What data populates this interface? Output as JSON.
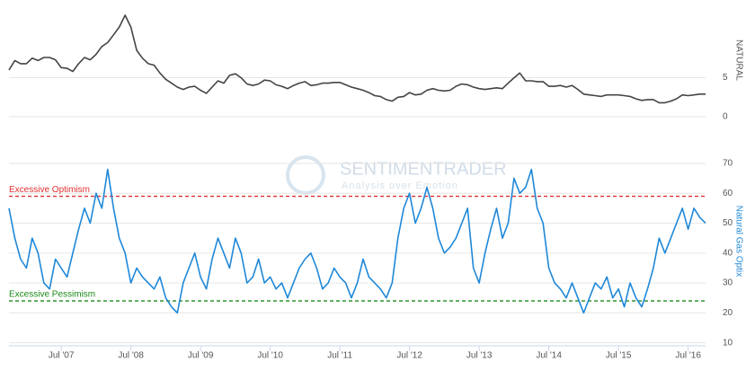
{
  "chart_data": [
    {
      "type": "line",
      "axis_title": "NATURAL",
      "x": [
        "2006-10",
        "2006-11",
        "2006-12",
        "2007-01",
        "2007-02",
        "2007-03",
        "2007-04",
        "2007-05",
        "2007-06",
        "2007-07",
        "2007-08",
        "2007-09",
        "2007-10",
        "2007-11",
        "2007-12",
        "2008-01",
        "2008-02",
        "2008-03",
        "2008-04",
        "2008-05",
        "2008-06",
        "2008-07",
        "2008-08",
        "2008-09",
        "2008-10",
        "2008-11",
        "2008-12",
        "2009-01",
        "2009-02",
        "2009-03",
        "2009-04",
        "2009-05",
        "2009-06",
        "2009-07",
        "2009-08",
        "2009-09",
        "2009-10",
        "2009-11",
        "2009-12",
        "2010-01",
        "2010-02",
        "2010-03",
        "2010-04",
        "2010-05",
        "2010-06",
        "2010-07",
        "2010-08",
        "2010-09",
        "2010-10",
        "2010-11",
        "2010-12",
        "2011-01",
        "2011-02",
        "2011-03",
        "2011-04",
        "2011-05",
        "2011-06",
        "2011-07",
        "2011-08",
        "2011-09",
        "2011-10",
        "2011-11",
        "2011-12",
        "2012-01",
        "2012-02",
        "2012-03",
        "2012-04",
        "2012-05",
        "2012-06",
        "2012-07",
        "2012-08",
        "2012-09",
        "2012-10",
        "2012-11",
        "2012-12",
        "2013-01",
        "2013-02",
        "2013-03",
        "2013-04",
        "2013-05",
        "2013-06",
        "2013-07",
        "2013-08",
        "2013-09",
        "2013-10",
        "2013-11",
        "2013-12",
        "2014-01",
        "2014-02",
        "2014-03",
        "2014-04",
        "2014-05",
        "2014-06",
        "2014-07",
        "2014-08",
        "2014-09",
        "2014-10",
        "2014-11",
        "2014-12",
        "2015-01",
        "2015-02",
        "2015-03",
        "2015-04",
        "2015-05",
        "2015-06",
        "2015-07",
        "2015-08",
        "2015-09",
        "2015-10",
        "2015-11",
        "2015-12",
        "2016-01",
        "2016-02",
        "2016-03",
        "2016-04",
        "2016-05",
        "2016-06",
        "2016-07",
        "2016-08",
        "2016-09",
        "2016-10"
      ],
      "series": [
        {
          "name": "NATURAL",
          "color": "#444444",
          "values": [
            6.0,
            7.2,
            6.8,
            6.8,
            7.5,
            7.2,
            7.6,
            7.6,
            7.3,
            6.3,
            6.2,
            5.8,
            6.8,
            7.6,
            7.3,
            8.0,
            9.0,
            9.5,
            10.5,
            11.5,
            13.0,
            11.5,
            8.5,
            7.5,
            6.8,
            6.6,
            5.6,
            4.8,
            4.3,
            3.8,
            3.5,
            3.8,
            3.9,
            3.4,
            3.0,
            3.8,
            4.6,
            4.3,
            5.3,
            5.5,
            5.0,
            4.2,
            4.0,
            4.2,
            4.7,
            4.6,
            4.1,
            3.9,
            3.6,
            4.0,
            4.3,
            4.5,
            4.0,
            4.1,
            4.3,
            4.3,
            4.4,
            4.4,
            4.1,
            3.8,
            3.6,
            3.4,
            3.1,
            2.7,
            2.6,
            2.2,
            2.0,
            2.5,
            2.6,
            3.1,
            2.8,
            2.9,
            3.4,
            3.6,
            3.4,
            3.3,
            3.4,
            3.9,
            4.2,
            4.1,
            3.8,
            3.6,
            3.5,
            3.6,
            3.7,
            3.6,
            4.3,
            5.0,
            5.6,
            4.6,
            4.6,
            4.5,
            4.5,
            3.9,
            3.9,
            4.0,
            3.8,
            4.0,
            3.5,
            2.9,
            2.8,
            2.7,
            2.6,
            2.8,
            2.8,
            2.8,
            2.7,
            2.6,
            2.3,
            2.1,
            2.2,
            2.2,
            1.8,
            1.8,
            2.0,
            2.3,
            2.8,
            2.7,
            2.8,
            2.9,
            2.9
          ]
        }
      ],
      "ylim": [
        0,
        14.5
      ],
      "yticks": [
        0,
        5
      ],
      "grid": true
    },
    {
      "type": "line",
      "axis_title": "Natural Gas Optix",
      "watermark": "SENTIMENTRADER",
      "watermark_subtitle": "Analysis over Emotion",
      "x": [
        "2006-10",
        "2006-11",
        "2006-12",
        "2007-01",
        "2007-02",
        "2007-03",
        "2007-04",
        "2007-05",
        "2007-06",
        "2007-07",
        "2007-08",
        "2007-09",
        "2007-10",
        "2007-11",
        "2007-12",
        "2008-01",
        "2008-02",
        "2008-03",
        "2008-04",
        "2008-05",
        "2008-06",
        "2008-07",
        "2008-08",
        "2008-09",
        "2008-10",
        "2008-11",
        "2008-12",
        "2009-01",
        "2009-02",
        "2009-03",
        "2009-04",
        "2009-05",
        "2009-06",
        "2009-07",
        "2009-08",
        "2009-09",
        "2009-10",
        "2009-11",
        "2009-12",
        "2010-01",
        "2010-02",
        "2010-03",
        "2010-04",
        "2010-05",
        "2010-06",
        "2010-07",
        "2010-08",
        "2010-09",
        "2010-10",
        "2010-11",
        "2010-12",
        "2011-01",
        "2011-02",
        "2011-03",
        "2011-04",
        "2011-05",
        "2011-06",
        "2011-07",
        "2011-08",
        "2011-09",
        "2011-10",
        "2011-11",
        "2011-12",
        "2012-01",
        "2012-02",
        "2012-03",
        "2012-04",
        "2012-05",
        "2012-06",
        "2012-07",
        "2012-08",
        "2012-09",
        "2012-10",
        "2012-11",
        "2012-12",
        "2013-01",
        "2013-02",
        "2013-03",
        "2013-04",
        "2013-05",
        "2013-06",
        "2013-07",
        "2013-08",
        "2013-09",
        "2013-10",
        "2013-11",
        "2013-12",
        "2014-01",
        "2014-02",
        "2014-03",
        "2014-04",
        "2014-05",
        "2014-06",
        "2014-07",
        "2014-08",
        "2014-09",
        "2014-10",
        "2014-11",
        "2014-12",
        "2015-01",
        "2015-02",
        "2015-03",
        "2015-04",
        "2015-05",
        "2015-06",
        "2015-07",
        "2015-08",
        "2015-09",
        "2015-10",
        "2015-11",
        "2015-12",
        "2016-01",
        "2016-02",
        "2016-03",
        "2016-04",
        "2016-05",
        "2016-06",
        "2016-07",
        "2016-08",
        "2016-09",
        "2016-10"
      ],
      "series": [
        {
          "name": "Natural Gas Optix",
          "color": "#1f88d8",
          "values": [
            55,
            45,
            38,
            35,
            45,
            40,
            30,
            28,
            38,
            35,
            32,
            40,
            48,
            55,
            50,
            60,
            55,
            68,
            55,
            45,
            40,
            30,
            35,
            32,
            30,
            28,
            32,
            25,
            22,
            20,
            30,
            35,
            40,
            32,
            28,
            38,
            45,
            40,
            35,
            45,
            40,
            30,
            32,
            38,
            30,
            32,
            28,
            30,
            25,
            30,
            35,
            38,
            40,
            35,
            28,
            30,
            35,
            32,
            30,
            25,
            30,
            38,
            32,
            30,
            28,
            25,
            30,
            45,
            55,
            60,
            50,
            55,
            62,
            55,
            45,
            40,
            42,
            45,
            50,
            55,
            35,
            30,
            40,
            48,
            55,
            45,
            50,
            65,
            60,
            62,
            68,
            55,
            50,
            35,
            30,
            28,
            25,
            30,
            25,
            20,
            25,
            30,
            28,
            32,
            25,
            28,
            22,
            30,
            25,
            22,
            28,
            35,
            45,
            40,
            45,
            50,
            55,
            48,
            55,
            52,
            50
          ]
        }
      ],
      "thresholds": [
        {
          "label": "Excessive Optimism",
          "value": 59,
          "color": "#e03030"
        },
        {
          "label": "Excessive Pessimism",
          "value": 24,
          "color": "#1a8a1a"
        }
      ],
      "ylim": [
        9,
        79
      ],
      "yticks": [
        10,
        20,
        30,
        40,
        50,
        60,
        70
      ],
      "grid": true,
      "xticks": [
        {
          "value": "2007-07",
          "label": "Jul '07"
        },
        {
          "value": "2008-07",
          "label": "Jul '08"
        },
        {
          "value": "2009-07",
          "label": "Jul '09"
        },
        {
          "value": "2010-07",
          "label": "Jul '10"
        },
        {
          "value": "2011-07",
          "label": "Jul '11"
        },
        {
          "value": "2012-07",
          "label": "Jul '12"
        },
        {
          "value": "2013-07",
          "label": "Jul '13"
        },
        {
          "value": "2014-07",
          "label": "Jul '14"
        },
        {
          "value": "2015-07",
          "label": "Jul '15"
        },
        {
          "value": "2016-07",
          "label": "Jul '16"
        }
      ]
    }
  ]
}
